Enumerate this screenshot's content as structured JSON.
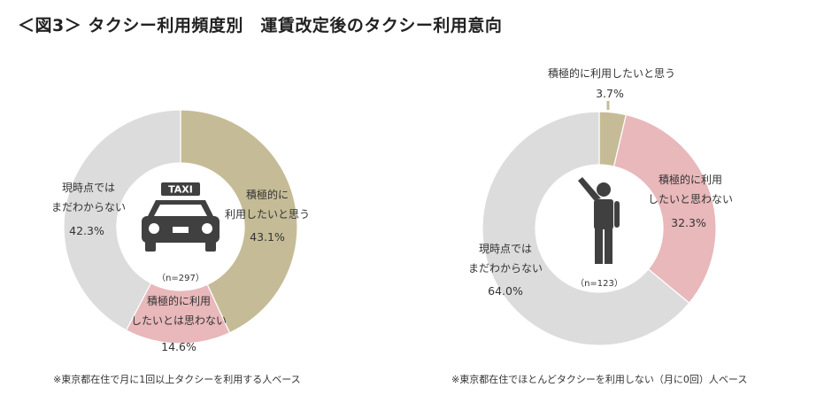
{
  "title": "＜図3＞ タクシー利用頻度別　運賃改定後のタクシー利用意向",
  "colors": {
    "positive": "#c5bc97",
    "negative": "#e8b8bb",
    "undecided": "#dcdcdc",
    "icon": "#404040"
  },
  "chart_data": [
    {
      "type": "pie",
      "donut": true,
      "icon": "taxi-icon",
      "icon_text": "TAXI",
      "n_label": "（n=297）",
      "note": "※東京都在住で月に1回以上タクシーを利用する人ベース",
      "slices": [
        {
          "label_lines": [
            "積極的に",
            "利用したいと思う"
          ],
          "value": 43.1,
          "value_label": "43.1%",
          "color_key": "positive"
        },
        {
          "label_lines": [
            "積極的に利用",
            "したいとは思わない"
          ],
          "value": 14.6,
          "value_label": "14.6%",
          "color_key": "negative"
        },
        {
          "label_lines": [
            "現時点では",
            "まだわからない"
          ],
          "value": 42.3,
          "value_label": "42.3%",
          "color_key": "undecided"
        }
      ]
    },
    {
      "type": "pie",
      "donut": true,
      "icon": "person-icon",
      "n_label": "（n=123）",
      "note": "※東京都在住でほとんどタクシーを利用しない（月に0回）人ベース",
      "slices": [
        {
          "label_lines": [
            "積極的に利用したいと思う"
          ],
          "value": 3.7,
          "value_label": "3.7%",
          "color_key": "positive"
        },
        {
          "label_lines": [
            "積極的に利用",
            "したいと思わない"
          ],
          "value": 32.3,
          "value_label": "32.3%",
          "color_key": "negative"
        },
        {
          "label_lines": [
            "現時点では",
            "まだわからない"
          ],
          "value": 64.0,
          "value_label": "64.0%",
          "color_key": "undecided"
        }
      ]
    }
  ]
}
